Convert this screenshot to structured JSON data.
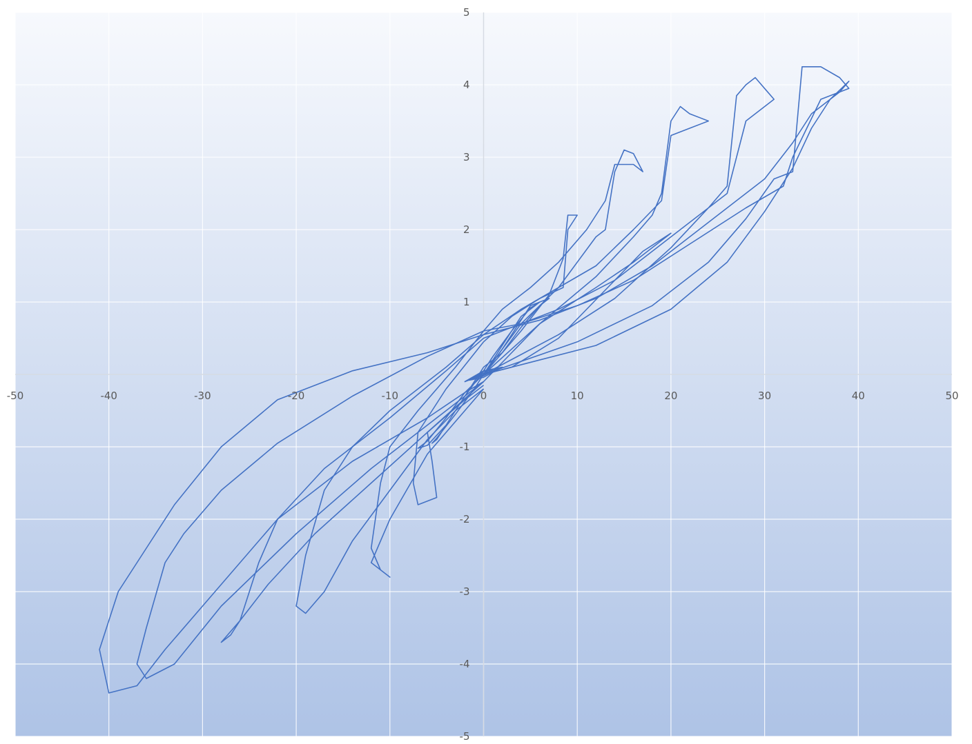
{
  "chart_data": {
    "type": "line",
    "title": "",
    "xlabel": "",
    "ylabel": "",
    "xlim": [
      -50,
      50
    ],
    "ylim": [
      -5,
      5
    ],
    "x_ticks": [
      "-50",
      "-40",
      "-30",
      "-20",
      "-10",
      "0",
      "10",
      "20",
      "30",
      "40",
      "50"
    ],
    "y_ticks": [
      "5",
      "4",
      "3",
      "2",
      "1",
      "-1",
      "-2",
      "-3",
      "-4",
      "-5"
    ],
    "grid": true,
    "legend": "none",
    "line_color": "#4472C4",
    "background_gradient": [
      "#f7f9fd",
      "#aec3e6"
    ],
    "series": [
      {
        "x": [
          0,
          1,
          0,
          -1,
          0,
          1.5,
          0,
          -1.5,
          0,
          2,
          0,
          -2,
          0
        ],
        "y": [
          0,
          0.05,
          0.02,
          -0.05,
          -0.02,
          0.08,
          0.04,
          -0.08,
          -0.04,
          0.1,
          0.05,
          -0.1,
          0
        ]
      },
      {
        "x": [
          0,
          2,
          4,
          5,
          6,
          5,
          3,
          1,
          0,
          -2,
          -4,
          -5,
          -5.5,
          -5,
          -3,
          -1,
          0,
          2,
          4,
          6,
          7,
          6,
          4,
          2,
          0,
          -2,
          -4,
          -6,
          -7,
          -6,
          -4,
          -2,
          0
        ],
        "y": [
          0,
          0.35,
          0.75,
          0.95,
          1.0,
          0.92,
          0.6,
          0.25,
          0.05,
          -0.3,
          -0.7,
          -0.9,
          -0.95,
          -0.88,
          -0.55,
          -0.2,
          0.0,
          0.4,
          0.8,
          1.0,
          1.05,
          0.95,
          0.65,
          0.3,
          0.1,
          -0.3,
          -0.7,
          -0.98,
          -1.02,
          -0.92,
          -0.6,
          -0.25,
          0
        ]
      },
      {
        "x": [
          0,
          4,
          7,
          8.5,
          9,
          10,
          9,
          8.5,
          6,
          3,
          0,
          -4,
          -7,
          -7.5,
          -7,
          -5,
          -5.5,
          -6,
          -3,
          0,
          3,
          6,
          9,
          12,
          16,
          19,
          20,
          17,
          14,
          8,
          3,
          0
        ],
        "y": [
          0,
          0.6,
          1.1,
          1.6,
          2.2,
          2.2,
          2.0,
          1.2,
          1.05,
          0.8,
          0.45,
          -0.2,
          -0.8,
          -1.5,
          -1.8,
          -1.7,
          -1.2,
          -0.8,
          -0.45,
          -0.1,
          0.3,
          0.7,
          0.95,
          1.2,
          1.55,
          1.85,
          1.95,
          1.7,
          1.3,
          0.5,
          0.1,
          0
        ]
      },
      {
        "x": [
          0,
          4,
          8,
          12,
          13,
          14,
          15,
          16,
          17,
          16,
          14,
          13,
          11,
          8,
          5,
          2,
          0,
          -3,
          -7,
          -10,
          -11,
          -12,
          -11,
          -10,
          -12,
          -10,
          -6,
          -2,
          0
        ],
        "y": [
          0,
          0.7,
          1.2,
          1.9,
          2.0,
          2.8,
          3.1,
          3.05,
          2.8,
          2.9,
          2.9,
          2.4,
          2.0,
          1.55,
          1.2,
          0.9,
          0.6,
          0.1,
          -0.5,
          -1.0,
          -1.5,
          -2.4,
          -2.7,
          -2.8,
          -2.6,
          -2.0,
          -1.1,
          -0.5,
          -0.2
        ]
      },
      {
        "x": [
          0,
          6,
          12,
          16,
          18,
          19,
          20,
          21,
          22,
          24,
          22,
          20,
          19,
          16,
          12,
          8,
          4,
          0,
          -4,
          -10,
          -14,
          -17,
          -19,
          -20,
          -19,
          -17,
          -14,
          -10,
          -6,
          -3,
          0
        ],
        "y": [
          0,
          0.7,
          1.35,
          1.9,
          2.2,
          2.5,
          3.5,
          3.7,
          3.6,
          3.5,
          3.4,
          3.3,
          2.4,
          2.0,
          1.5,
          1.2,
          0.9,
          0.55,
          0.1,
          -0.5,
          -1.0,
          -1.6,
          -2.5,
          -3.2,
          -3.3,
          -3.0,
          -2.3,
          -1.6,
          -0.9,
          -0.5,
          -0.2
        ]
      },
      {
        "x": [
          0,
          8,
          14,
          20,
          24,
          26,
          27,
          28,
          29,
          30,
          31,
          28,
          26,
          24,
          20,
          14,
          8,
          2,
          0,
          -4,
          -10,
          -17,
          -22,
          -24,
          -26,
          -27,
          -28,
          -26,
          -23,
          -18,
          -12,
          -6,
          -2,
          0
        ],
        "y": [
          0,
          0.55,
          1.05,
          1.75,
          2.3,
          2.6,
          3.85,
          4.0,
          4.1,
          3.95,
          3.8,
          3.5,
          2.5,
          2.3,
          1.9,
          1.3,
          0.9,
          0.6,
          0.5,
          0.05,
          -0.6,
          -1.3,
          -2.0,
          -2.6,
          -3.4,
          -3.6,
          -3.7,
          -3.4,
          -2.9,
          -2.2,
          -1.5,
          -0.8,
          -0.35,
          -0.15
        ]
      },
      {
        "x": [
          0,
          10,
          18,
          24,
          28,
          31,
          33,
          34,
          36,
          38,
          39,
          36,
          33,
          32,
          28,
          22,
          16,
          10,
          4,
          0,
          -6,
          -14,
          -22,
          -28,
          -32,
          -34,
          -36,
          -37,
          -36,
          -33,
          -28,
          -20,
          -12,
          -6,
          -2,
          0
        ],
        "y": [
          0,
          0.45,
          0.95,
          1.55,
          2.15,
          2.7,
          2.8,
          4.25,
          4.25,
          4.1,
          3.95,
          3.8,
          3.0,
          2.6,
          2.3,
          1.8,
          1.3,
          0.95,
          0.7,
          0.6,
          0.25,
          -0.3,
          -0.95,
          -1.6,
          -2.2,
          -2.6,
          -3.5,
          -4.0,
          -4.2,
          -4.0,
          -3.2,
          -2.2,
          -1.3,
          -0.7,
          -0.3,
          -0.1
        ]
      },
      {
        "x": [
          0,
          12,
          20,
          26,
          30,
          33,
          35,
          37,
          39,
          38,
          35,
          33,
          30,
          24,
          18,
          12,
          6,
          0,
          -6,
          -14,
          -22,
          -28,
          -33,
          -36,
          -39,
          -41,
          -40,
          -37,
          -34,
          -30,
          -22,
          -14,
          -6,
          -2,
          0
        ],
        "y": [
          0,
          0.4,
          0.9,
          1.55,
          2.25,
          2.85,
          3.4,
          3.8,
          4.05,
          3.9,
          3.6,
          3.2,
          2.7,
          2.1,
          1.5,
          1.05,
          0.75,
          0.55,
          0.3,
          0.05,
          -0.35,
          -1.0,
          -1.8,
          -2.4,
          -3.0,
          -3.8,
          -4.4,
          -4.3,
          -3.8,
          -3.2,
          -2.0,
          -1.2,
          -0.6,
          -0.25,
          -0.1
        ]
      }
    ]
  }
}
